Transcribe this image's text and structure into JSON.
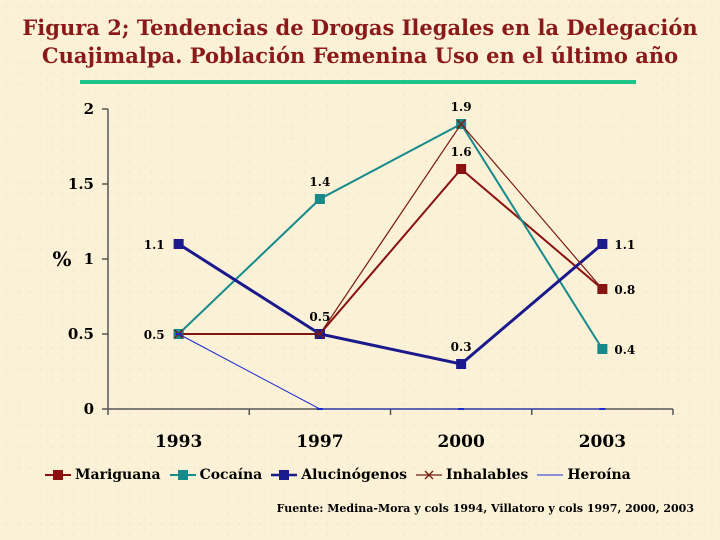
{
  "title_line1": "Figura 2; Tendencias de Drogas Ilegales en  la Delegación",
  "title_line2": "Cuajimalpa. Población Femenina Uso en el último año",
  "source": "Fuente: Medina-Mora y cols 1994, Villatoro y cols 1997, 2000, 2003",
  "colors": {
    "accent_rule": "#1fc48a",
    "title": "#8a1a1a"
  },
  "chart_data": {
    "type": "line",
    "title": "Figura 2; Tendencias de Drogas Ilegales en  la Delegación Cuajimalpa. Población Femenina Uso en el último año",
    "xlabel": "",
    "ylabel": "%",
    "categories": [
      "1993",
      "1997",
      "2000",
      "2003"
    ],
    "ylim": [
      0,
      2
    ],
    "yticks": [
      "0",
      "0.5",
      "1",
      "1.5",
      "2"
    ],
    "grid": false,
    "legend_position": "bottom",
    "series": [
      {
        "name": "Mariguana",
        "color": "#8b1010",
        "marker": "square",
        "width": 2,
        "values": [
          0.5,
          0.5,
          1.6,
          0.8
        ]
      },
      {
        "name": "Cocaína",
        "color": "#168a8a",
        "marker": "square",
        "width": 2,
        "values": [
          0.5,
          1.4,
          1.9,
          0.4
        ]
      },
      {
        "name": "Alucinógenos",
        "color": "#1a1a8c",
        "marker": "square",
        "width": 3,
        "values": [
          1.1,
          0.5,
          0.3,
          1.1
        ]
      },
      {
        "name": "Inhalables",
        "color": "#7a1c10",
        "marker": "x",
        "width": 1.2,
        "values": [
          0.5,
          0.5,
          1.9,
          0.8
        ]
      },
      {
        "name": "Heroína",
        "color": "#1a2ad0",
        "marker": "dash",
        "width": 1,
        "values": [
          0.5,
          0,
          0,
          0
        ]
      }
    ],
    "data_labels": [
      {
        "category": "1993",
        "value": 1.1,
        "text": "1.1"
      },
      {
        "category": "1993",
        "value": 0.5,
        "text": "0.5"
      },
      {
        "category": "1997",
        "value": 1.4,
        "text": "1.4"
      },
      {
        "category": "1997",
        "value": 0.5,
        "text": "0.5"
      },
      {
        "category": "2000",
        "value": 1.9,
        "text": "1.9"
      },
      {
        "category": "2000",
        "value": 1.6,
        "text": "1.6"
      },
      {
        "category": "2000",
        "value": 0.3,
        "text": "0.3"
      },
      {
        "category": "2003",
        "value": 1.1,
        "text": "1.1"
      },
      {
        "category": "2003",
        "value": 0.8,
        "text": "0.8"
      },
      {
        "category": "2003",
        "value": 0.4,
        "text": "0.4"
      }
    ]
  }
}
